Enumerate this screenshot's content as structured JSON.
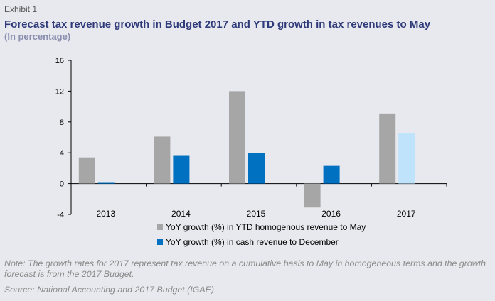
{
  "exhibit": "Exhibit 1",
  "title": "Forecast tax revenue growth in Budget 2017 and YTD growth in tax revenues to May",
  "subtitle": "(In percentage)",
  "note": "Note: The growth rates for 2017 represent tax revenue on a cumulative basis to May in homogeneous terms and the growth forecast is from the 2017 Budget.",
  "source": "Source: National Accounting and 2017 Budget (IGAE).",
  "colors": {
    "gray": "#a6a6a6",
    "blue": "#0070c0",
    "light_blue": "#bfe3fa"
  },
  "chart_data": {
    "type": "bar",
    "categories": [
      "2013",
      "2014",
      "2015",
      "2016",
      "2017"
    ],
    "series": [
      {
        "name": "YoY growth (%) in YTD homogenous revenue to May",
        "values": [
          3.4,
          6.1,
          12.0,
          -3.1,
          9.1
        ]
      },
      {
        "name": "YoY growth (%) in cash revenue to December",
        "values": [
          0.1,
          3.6,
          4.0,
          2.3,
          6.6
        ]
      }
    ],
    "highlight": {
      "series": 1,
      "category": 4,
      "color": "#bfe3fa"
    },
    "ylim": [
      -4,
      16
    ],
    "yticks": [
      "16",
      "12",
      "8",
      "4",
      "0",
      "-4"
    ],
    "ytick_values": [
      16,
      12,
      8,
      4,
      0,
      -4
    ],
    "legend_position": "bottom"
  }
}
